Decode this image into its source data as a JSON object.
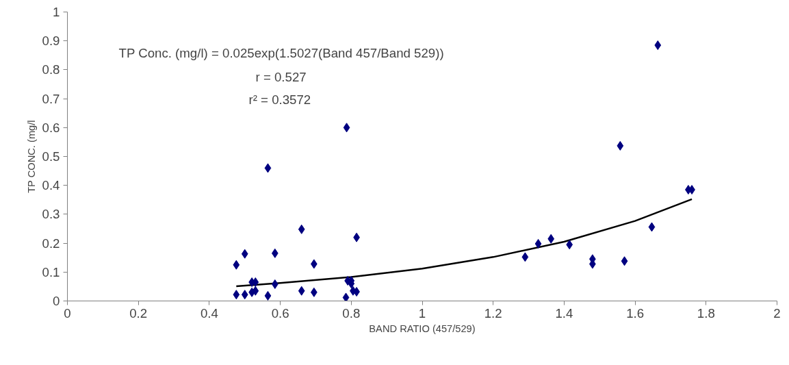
{
  "chart_data": {
    "type": "scatter",
    "xlabel": "BAND RATIO (457/529)",
    "ylabel": "TP CONC. (mg/l",
    "annotations": [
      "TP Conc. (mg/l) = 0.025exp(1.5027(Band 457/Band 529))",
      "r = 0.527",
      "r² = 0.3572"
    ],
    "xlim": [
      0,
      2
    ],
    "ylim": [
      0,
      1
    ],
    "xticks": [
      0,
      0.2,
      0.4,
      0.6,
      0.8,
      1,
      1.2,
      1.4,
      1.6,
      1.8,
      2
    ],
    "yticks": [
      0,
      0.1,
      0.2,
      0.3,
      0.4,
      0.5,
      0.6,
      0.7,
      0.8,
      0.9,
      1
    ],
    "grid": false,
    "series": [
      {
        "color": "#000080",
        "marker": "diamond",
        "x": [
          0.476,
          0.476,
          0.5,
          0.5,
          0.52,
          0.53,
          0.52,
          0.53,
          0.565,
          0.565,
          0.585,
          0.585,
          0.66,
          0.66,
          0.695,
          0.695,
          0.787,
          0.785,
          0.79,
          0.8,
          0.8,
          0.805,
          0.815,
          0.815,
          1.29,
          1.327,
          1.363,
          1.415,
          1.48,
          1.48,
          1.57,
          1.558,
          1.647,
          1.664,
          1.75,
          1.76
        ],
        "values": [
          0.125,
          0.022,
          0.163,
          0.022,
          0.065,
          0.065,
          0.03,
          0.035,
          0.46,
          0.018,
          0.165,
          0.058,
          0.248,
          0.035,
          0.128,
          0.03,
          0.6,
          0.012,
          0.07,
          0.06,
          0.07,
          0.035,
          0.032,
          0.22,
          0.152,
          0.198,
          0.215,
          0.195,
          0.145,
          0.128,
          0.138,
          0.537,
          0.256,
          0.885,
          0.385,
          0.385
        ]
      },
      {
        "type": "line",
        "color": "#000000",
        "line_style": "solid",
        "marker": "none",
        "x": [
          0.476,
          0.6,
          0.8,
          1.0,
          1.2,
          1.4,
          1.6,
          1.76
        ],
        "values": [
          0.051,
          0.062,
          0.083,
          0.112,
          0.152,
          0.205,
          0.277,
          0.352
        ]
      }
    ]
  }
}
